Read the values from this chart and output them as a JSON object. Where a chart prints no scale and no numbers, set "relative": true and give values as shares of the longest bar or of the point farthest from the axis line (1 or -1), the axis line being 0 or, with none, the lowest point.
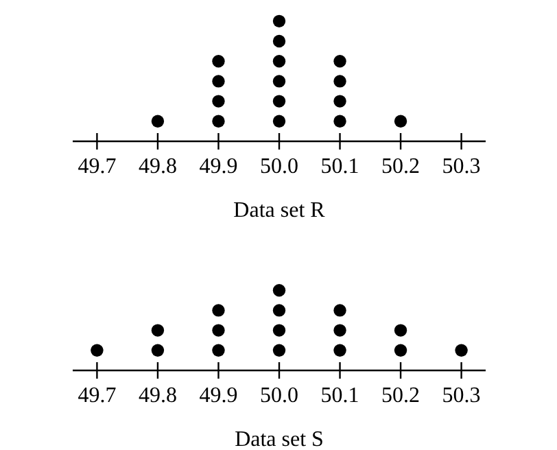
{
  "chart_data": [
    {
      "type": "scatter",
      "xlabel": "Data set R",
      "marker": "circle",
      "tick_labels": "x",
      "relative": true,
      "xlim": [
        49.66,
        50.34
      ],
      "xticks": [
        {
          "value": 49.7,
          "label": "49.7"
        },
        {
          "value": 49.8,
          "label": "49.8"
        },
        {
          "value": 49.9,
          "label": "49.9"
        },
        {
          "value": 50,
          "label": "50.0"
        },
        {
          "value": 50.1,
          "label": "50.1"
        },
        {
          "value": 50.2,
          "label": "50.2"
        },
        {
          "value": 50.3,
          "label": "50.3"
        }
      ],
      "series": [
        {
          "color": "#000000",
          "x": [
            49.8,
            49.9,
            49.9,
            49.9,
            49.9,
            50,
            50,
            50,
            50,
            50,
            50,
            50.1,
            50.1,
            50.1,
            50.1,
            50.2
          ],
          "values": [
            0.1667,
            0.1667,
            0.3333,
            0.5,
            0.6667,
            0.1667,
            0.3333,
            0.5,
            0.6667,
            0.8333,
            1,
            0.1667,
            0.3333,
            0.5,
            0.6667,
            0.1667
          ]
        }
      ]
    },
    {
      "type": "scatter",
      "xlabel": "Data set S",
      "marker": "circle",
      "tick_labels": "x",
      "relative": true,
      "xlim": [
        49.66,
        50.34
      ],
      "xticks": [
        {
          "value": 49.7,
          "label": "49.7"
        },
        {
          "value": 49.8,
          "label": "49.8"
        },
        {
          "value": 49.9,
          "label": "49.9"
        },
        {
          "value": 50,
          "label": "50.0"
        },
        {
          "value": 50.1,
          "label": "50.1"
        },
        {
          "value": 50.2,
          "label": "50.2"
        },
        {
          "value": 50.3,
          "label": "50.3"
        }
      ],
      "series": [
        {
          "color": "#000000",
          "x": [
            49.7,
            49.8,
            49.8,
            49.9,
            49.9,
            49.9,
            50,
            50,
            50,
            50,
            50.1,
            50.1,
            50.1,
            50.2,
            50.2,
            50.3
          ],
          "values": [
            0.25,
            0.25,
            0.5,
            0.25,
            0.5,
            0.75,
            0.25,
            0.5,
            0.75,
            1,
            0.25,
            0.5,
            0.75,
            0.25,
            0.5,
            0.25
          ]
        }
      ]
    }
  ]
}
